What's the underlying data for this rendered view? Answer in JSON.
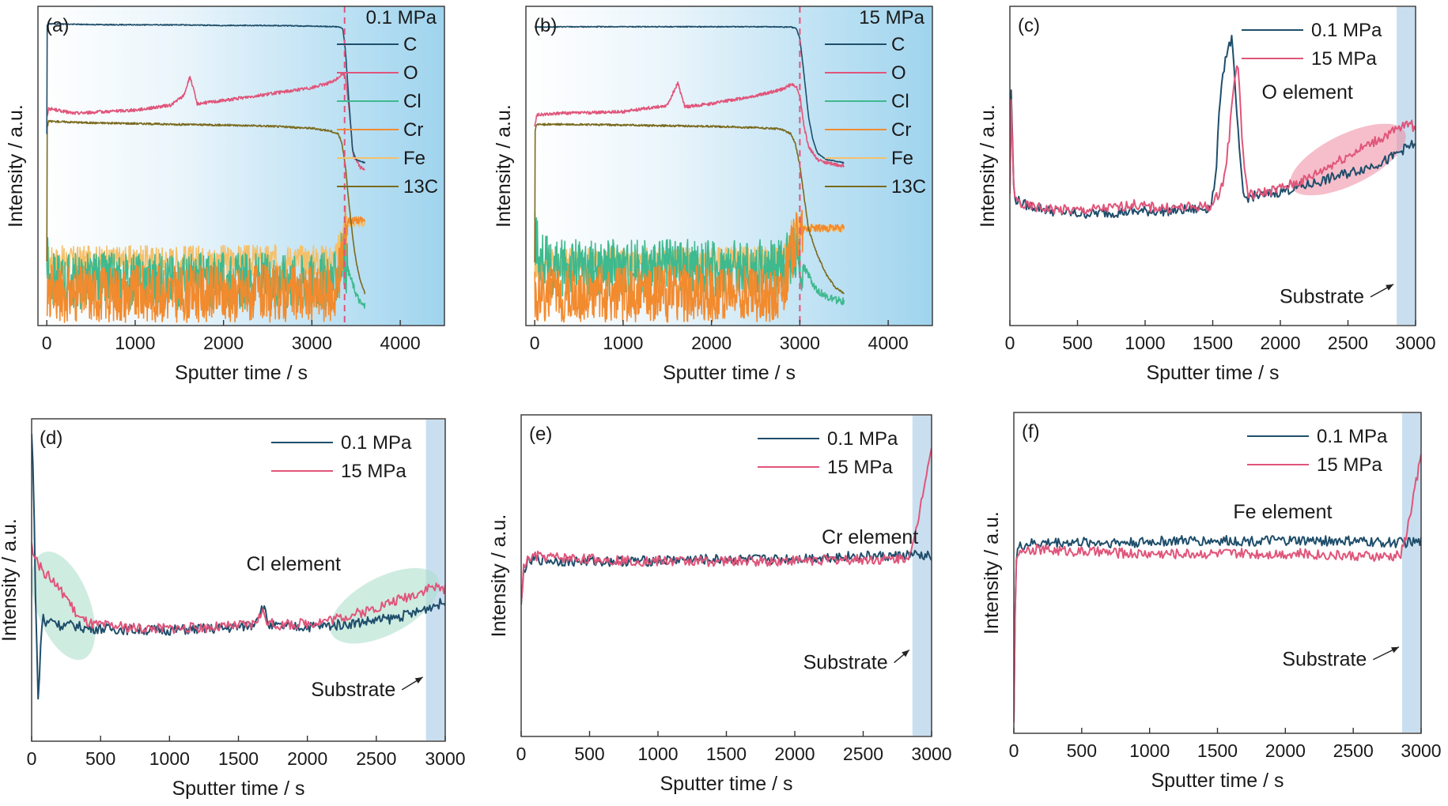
{
  "chart_data": [
    {
      "panel": "(a)",
      "type": "line",
      "xlabel": "Sputter time / s",
      "ylabel": "Intensity / a.u.",
      "xlim": [
        -100,
        4500
      ],
      "xticks": [
        0,
        1000,
        2000,
        3000,
        4000
      ],
      "ylim": [
        0,
        100
      ],
      "annotation": "0.1 MPa",
      "interface_time": 3370,
      "legend": [
        "C",
        "O",
        "Cl",
        "Cr",
        "Fe",
        "13C"
      ],
      "colors": {
        "C": "#1f4e6b",
        "O": "#e0557a",
        "Cl": "#3fb98e",
        "Cr": "#f28a2e",
        "Fe": "#f5c06a",
        "13C": "#7a6a1e",
        "interface": "#e0557a",
        "bg": "#9fd4ee"
      },
      "series": [
        {
          "name": "C",
          "x": [
            0,
            5,
            20,
            500,
            1000,
            1500,
            2000,
            2500,
            3000,
            3300,
            3350,
            3380,
            3420,
            3460,
            3500,
            3600
          ],
          "y": [
            60,
            94,
            94.5,
            94.3,
            94.2,
            94.2,
            94,
            94,
            93.8,
            93.6,
            93,
            86,
            70,
            55,
            52,
            51
          ]
        },
        {
          "name": "O",
          "x": [
            0,
            20,
            300,
            1000,
            1400,
            1550,
            1620,
            1660,
            1700,
            2000,
            2500,
            3000,
            3250,
            3350,
            3380,
            3420,
            3470,
            3550,
            3600
          ],
          "y": [
            65,
            68,
            66.5,
            67.5,
            69,
            72,
            78,
            74,
            69.5,
            70.5,
            72.5,
            74.5,
            76.5,
            79,
            78,
            68,
            53,
            49.5,
            49
          ]
        },
        {
          "name": "Cl",
          "x": [
            0,
            30,
            100,
            3250,
            3290,
            3320,
            3360,
            3400,
            3450,
            3500,
            3550,
            3600
          ],
          "y": [
            21,
            14,
            14,
            14,
            16,
            20,
            22,
            18,
            14,
            10,
            7,
            6
          ]
        },
        {
          "name": "Cr",
          "x": [
            0,
            50,
            3250,
            3290,
            3320,
            3360,
            3400,
            3450,
            3500,
            3560,
            3600
          ],
          "y": [
            10,
            10,
            10,
            12,
            18,
            27,
            33,
            33,
            33,
            33,
            33
          ]
        },
        {
          "name": "Fe",
          "x": [
            0,
            40,
            3250,
            3290,
            3320,
            3360,
            3400,
            3450,
            3500,
            3560,
            3600
          ],
          "y": [
            21,
            20,
            20.5,
            22,
            26,
            30,
            32,
            32,
            32,
            32,
            32
          ]
        },
        {
          "name": "13C",
          "x": [
            0,
            5,
            20,
            500,
            1000,
            1500,
            2000,
            2500,
            3000,
            3200,
            3300,
            3340,
            3380,
            3420,
            3460,
            3500,
            3550,
            3600
          ],
          "y": [
            20,
            62,
            64,
            63.5,
            63.3,
            63,
            62.8,
            62.5,
            61.8,
            61,
            60,
            57,
            50,
            38,
            28,
            20,
            14,
            10
          ]
        }
      ]
    },
    {
      "panel": "(b)",
      "type": "line",
      "xlabel": "Sputter time / s",
      "ylabel": "Intensity / a.u.",
      "xlim": [
        -100,
        4500
      ],
      "xticks": [
        0,
        1000,
        2000,
        3000,
        4000
      ],
      "ylim": [
        0,
        100
      ],
      "annotation": "15 MPa",
      "interface_time": 3000,
      "legend": [
        "C",
        "O",
        "Cl",
        "Cr",
        "Fe",
        "13C"
      ],
      "colors": {
        "C": "#1f4e6b",
        "O": "#e0557a",
        "Cl": "#3fb98e",
        "Cr": "#f28a2e",
        "Fe": "#f5c06a",
        "13C": "#7a6a1e",
        "interface": "#e0557a",
        "bg": "#9fd4ee"
      },
      "series": [
        {
          "name": "C",
          "x": [
            0,
            500,
            1000,
            1500,
            2000,
            2500,
            2900,
            2960,
            3000,
            3050,
            3100,
            3150,
            3200,
            3300,
            3400,
            3500
          ],
          "y": [
            93.5,
            93.6,
            93.6,
            93.6,
            93.6,
            93.6,
            93.5,
            93,
            90,
            78,
            65,
            58,
            54,
            52,
            51.5,
            51
          ]
        },
        {
          "name": "O",
          "x": [
            0,
            20,
            300,
            1000,
            1500,
            1620,
            1660,
            1700,
            2000,
            2500,
            2800,
            2900,
            2960,
            3000,
            3050,
            3100,
            3200,
            3300,
            3500
          ],
          "y": [
            62,
            66,
            66.5,
            67,
            69,
            76,
            72,
            68.5,
            69.5,
            72,
            74,
            75.5,
            75,
            72,
            62,
            56,
            52,
            51,
            50
          ]
        },
        {
          "name": "Cl",
          "x": [
            0,
            20,
            60,
            120,
            200,
            2750,
            2820,
            2880,
            2940,
            3000,
            3050,
            3100,
            3150,
            3200,
            3300,
            3400,
            3500
          ],
          "y": [
            28,
            26,
            21,
            19.5,
            18,
            18,
            20,
            22,
            22,
            20,
            18,
            16,
            13,
            11,
            9,
            8,
            7.5
          ]
        },
        {
          "name": "Cr",
          "x": [
            0,
            50,
            2750,
            2800,
            2850,
            2900,
            2960,
            3000,
            3100,
            3200,
            3500
          ],
          "y": [
            10,
            10,
            10,
            12,
            16,
            22,
            28,
            30,
            30.5,
            30.5,
            30.5
          ]
        },
        {
          "name": "Fe",
          "x": [
            0,
            40,
            2750,
            2800,
            2850,
            2900,
            2960,
            3000,
            3100,
            3200,
            3500
          ],
          "y": [
            19.5,
            19.5,
            20,
            22,
            25,
            28,
            30,
            30.5,
            30.5,
            30.5,
            30.5
          ]
        },
        {
          "name": "13C",
          "x": [
            0,
            5,
            20,
            500,
            1000,
            1500,
            2000,
            2500,
            2800,
            2900,
            2950,
            3000,
            3050,
            3100,
            3200,
            3300,
            3400,
            3500
          ],
          "y": [
            20,
            61,
            63,
            63,
            62.8,
            62.6,
            62.4,
            62,
            61.5,
            60,
            57,
            50,
            40,
            30,
            22,
            16,
            12,
            10
          ]
        }
      ]
    },
    {
      "panel": "(c)",
      "type": "line",
      "xlabel": "Sputter time / s",
      "ylabel": "Intensity / a.u.",
      "xlim": [
        0,
        3000
      ],
      "xticks": [
        0,
        500,
        1000,
        1500,
        2000,
        2500,
        3000
      ],
      "ylim": [
        0,
        100
      ],
      "legend": [
        "0.1 MPa",
        "15 MPa"
      ],
      "annotations": [
        "O element",
        "Substrate"
      ],
      "substrate_start": 2860,
      "colors": {
        "0.1 MPa": "#1f4e6b",
        "15 MPa": "#e0557a",
        "substrate": "#c9dff0",
        "ellipse": "#f08aa0"
      },
      "series": [
        {
          "name": "0.1 MPa",
          "x": [
            0,
            10,
            30,
            100,
            300,
            500,
            800,
            1000,
            1200,
            1400,
            1480,
            1520,
            1560,
            1600,
            1640,
            1660,
            1700,
            1730,
            1800,
            1900,
            2000,
            2200,
            2400,
            2600,
            2800,
            2900,
            3000
          ],
          "y": [
            42,
            75,
            40,
            38,
            36,
            35,
            35.5,
            35.8,
            36,
            36.5,
            37,
            45,
            75,
            85,
            90,
            78,
            52,
            40,
            40.5,
            41,
            42,
            44,
            46.5,
            49,
            52,
            55,
            57
          ]
        },
        {
          "name": "15 MPa",
          "x": [
            0,
            10,
            30,
            100,
            300,
            500,
            800,
            900,
            1000,
            1200,
            1400,
            1500,
            1580,
            1620,
            1660,
            1690,
            1720,
            1760,
            1800,
            1900,
            2000,
            2200,
            2400,
            2600,
            2800,
            2900,
            2950,
            3000
          ],
          "y": [
            40,
            72,
            40,
            37.5,
            36.5,
            36,
            37,
            38,
            37.2,
            36.8,
            37.2,
            37.5,
            45,
            58,
            78,
            82,
            55,
            41,
            41,
            42,
            43,
            46,
            51,
            55.5,
            60,
            62,
            64,
            61
          ]
        }
      ]
    },
    {
      "panel": "(d)",
      "type": "line",
      "xlabel": "Sputter time / s",
      "ylabel": "Intensity / a.u.",
      "xlim": [
        0,
        3000
      ],
      "xticks": [
        0,
        500,
        1000,
        1500,
        2000,
        2500,
        3000
      ],
      "ylim": [
        0,
        100
      ],
      "legend": [
        "0.1 MPa",
        "15 MPa"
      ],
      "annotations": [
        "Cl element",
        "Substrate"
      ],
      "substrate_start": 2860,
      "colors": {
        "0.1 MPa": "#1f4e6b",
        "15 MPa": "#e0557a",
        "substrate": "#c9dff0",
        "ellipse": "#a8dcc8"
      },
      "series": [
        {
          "name": "0.1 MPa",
          "x": [
            0,
            15,
            30,
            50,
            60,
            80,
            100,
            150,
            200,
            300,
            400,
            500,
            800,
            1000,
            1200,
            1400,
            1600,
            1680,
            1720,
            1800,
            2000,
            2200,
            2400,
            2600,
            2800,
            2900,
            3000
          ],
          "y": [
            95,
            80,
            40,
            10,
            25,
            40,
            36,
            38,
            36,
            36,
            35,
            35,
            34.5,
            34.5,
            34.8,
            35,
            36,
            42,
            36,
            35.5,
            35.5,
            36,
            37,
            38,
            40,
            42,
            43
          ]
        },
        {
          "name": "15 MPa",
          "x": [
            0,
            30,
            60,
            100,
            150,
            200,
            250,
            300,
            350,
            400,
            450,
            500,
            800,
            1000,
            1200,
            1400,
            1600,
            1680,
            1720,
            1800,
            2000,
            2200,
            2400,
            2600,
            2800,
            2900,
            3000
          ],
          "y": [
            60,
            58,
            54,
            52,
            50,
            47,
            45,
            41,
            38,
            37,
            36,
            36,
            35,
            35,
            35.2,
            35.5,
            36.2,
            40,
            36.5,
            36,
            36.5,
            38,
            40,
            43,
            46,
            48,
            47
          ]
        }
      ]
    },
    {
      "panel": "(e)",
      "type": "line",
      "xlabel": "Sputter time / s",
      "ylabel": "Intensity / a.u.",
      "xlim": [
        0,
        3000
      ],
      "xticks": [
        0,
        500,
        1000,
        1500,
        2000,
        2500,
        3000
      ],
      "ylim": [
        0,
        100
      ],
      "legend": [
        "0.1 MPa",
        "15 MPa"
      ],
      "annotations": [
        "Cr element",
        "Substrate"
      ],
      "substrate_start": 2860,
      "colors": {
        "0.1 MPa": "#1f4e6b",
        "15 MPa": "#e0557a",
        "substrate": "#c9dff0"
      },
      "series": [
        {
          "name": "0.1 MPa",
          "x": [
            0,
            20,
            50,
            100,
            300,
            600,
            900,
            1200,
            1500,
            1800,
            2100,
            2400,
            2700,
            2850,
            2950,
            3000
          ],
          "y": [
            40,
            52,
            54,
            55,
            54.5,
            54.5,
            54.5,
            55,
            55,
            55,
            55.5,
            56,
            56,
            56.5,
            56,
            56
          ]
        },
        {
          "name": "15 MPa",
          "x": [
            0,
            20,
            50,
            100,
            300,
            600,
            900,
            1200,
            1500,
            1800,
            2100,
            2400,
            2700,
            2800,
            2850,
            2880,
            2920,
            2960,
            3000
          ],
          "y": [
            40,
            53,
            55,
            56,
            55.5,
            55,
            54.5,
            54.5,
            54.5,
            54.5,
            54.8,
            55,
            55,
            55.5,
            57,
            62,
            72,
            82,
            90
          ]
        }
      ]
    },
    {
      "panel": "(f)",
      "type": "line",
      "xlabel": "Sputter time / s",
      "ylabel": "Intensity / a.u.",
      "xlim": [
        0,
        3000
      ],
      "xticks": [
        0,
        500,
        1000,
        1500,
        2000,
        2500,
        3000
      ],
      "ylim": [
        0,
        100
      ],
      "legend": [
        "0.1 MPa",
        "15 MPa"
      ],
      "annotations": [
        "Fe element",
        "Substrate"
      ],
      "substrate_start": 2860,
      "colors": {
        "0.1 MPa": "#1f4e6b",
        "15 MPa": "#e0557a",
        "substrate": "#c9dff0"
      },
      "series": [
        {
          "name": "0.1 MPa",
          "x": [
            0,
            10,
            20,
            40,
            100,
            300,
            600,
            900,
            1200,
            1500,
            1800,
            2100,
            2400,
            2700,
            2850,
            2950,
            3000
          ],
          "y": [
            5,
            40,
            56,
            58,
            59,
            59.5,
            59.5,
            59.5,
            60,
            60,
            60,
            60,
            60,
            59.5,
            59.5,
            59.5,
            59.5
          ]
        },
        {
          "name": "15 MPa",
          "x": [
            0,
            10,
            20,
            40,
            100,
            300,
            600,
            900,
            1200,
            1500,
            1800,
            2100,
            2400,
            2700,
            2800,
            2850,
            2880,
            2920,
            2960,
            3000
          ],
          "y": [
            5,
            38,
            55,
            57,
            57.5,
            57,
            56.5,
            56,
            56,
            56,
            56,
            56,
            55.5,
            55,
            55,
            56,
            60,
            68,
            78,
            86
          ]
        }
      ]
    }
  ]
}
